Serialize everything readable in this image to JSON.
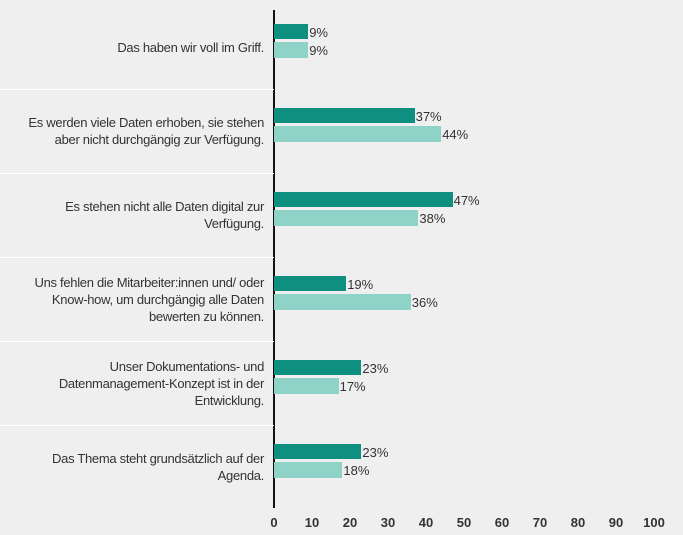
{
  "chart_data": {
    "type": "bar",
    "orientation": "horizontal",
    "categories": [
      "Das haben wir voll im Griff.",
      "Es werden viele Daten erhoben, sie stehen aber nicht durchgängig zur Verfügung.",
      "Es stehen nicht alle Daten digital zur Verfügung.",
      "Uns fehlen die Mitarbeiter:innen und/ oder Know-how, um durchgängig alle Daten bewerten zu können.",
      "Unser Dokumentations- und Datenmanagement-Konzept ist in der Entwicklung.",
      "Das Thema steht grundsätzlich auf der Agenda."
    ],
    "series": [
      {
        "color": "#0e8f80",
        "values": [
          9,
          37,
          47,
          19,
          23,
          23
        ],
        "value_labels": [
          "9%",
          "37%",
          "47%",
          "19%",
          "23%",
          "23%"
        ]
      },
      {
        "color": "#8fd3c8",
        "values": [
          9,
          44,
          38,
          36,
          17,
          18
        ],
        "value_labels": [
          "9%",
          "44%",
          "38%",
          "36%",
          "17%",
          "18%"
        ]
      }
    ],
    "xlim": [
      0,
      100
    ],
    "xticks": [
      0,
      10,
      20,
      30,
      40,
      50,
      60,
      70,
      80,
      90,
      100
    ]
  }
}
